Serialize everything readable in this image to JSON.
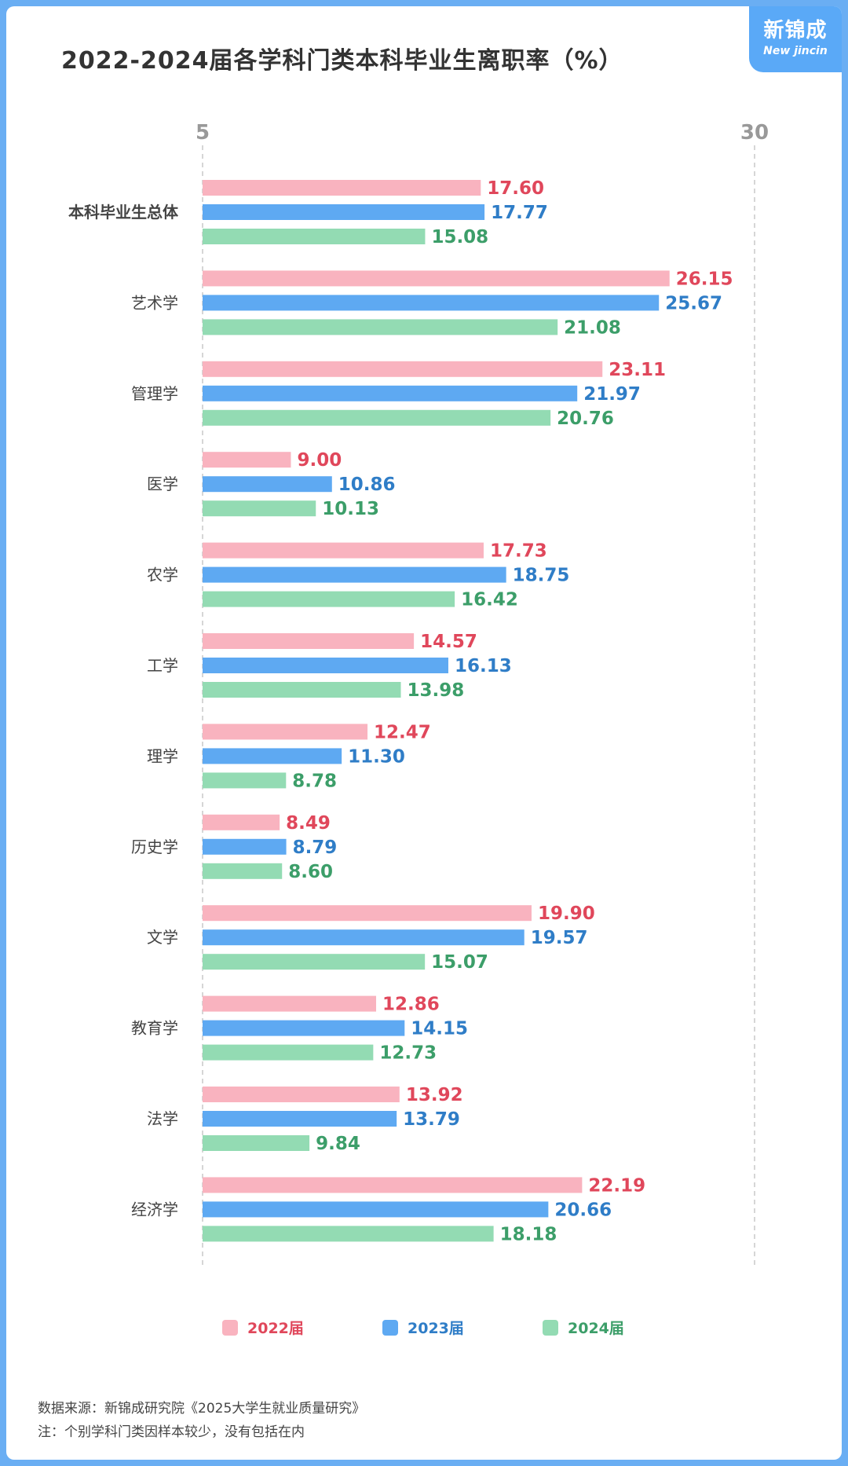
{
  "logo": {
    "cn": "新锦成",
    "en": "New jincin"
  },
  "footer": {
    "source": "数据来源：新锦成研究院《2025大学生就业质量研究》",
    "note": "注：个别学科门类因样本较少，没有包括在内"
  },
  "colors": {
    "2022": "#f9b3bf",
    "2022_label": "#e0475b",
    "2023": "#5ea9f2",
    "2023_label": "#2f7dc7",
    "2024": "#93dbb3",
    "2024_label": "#3c9e69",
    "axis": "#999999",
    "category": "#444444"
  },
  "chart_data": {
    "type": "bar",
    "orientation": "horizontal",
    "title": "2022-2024届各学科门类本科毕业生离职率（%）",
    "xlim": [
      5,
      30
    ],
    "ticks": [
      "5",
      "30"
    ],
    "grid": true,
    "legend_position": "bottom",
    "categories": [
      "本科毕业生总体",
      "艺术学",
      "管理学",
      "医学",
      "农学",
      "工学",
      "理学",
      "历史学",
      "文学",
      "教育学",
      "法学",
      "经济学"
    ],
    "series": [
      {
        "name": "2022届",
        "key": "2022",
        "values": [
          17.6,
          26.15,
          23.11,
          9.0,
          17.73,
          14.57,
          12.47,
          8.49,
          19.9,
          12.86,
          13.92,
          22.19
        ],
        "labels": [
          "17.60",
          "26.15",
          "23.11",
          "9.00",
          "17.73",
          "14.57",
          "12.47",
          "8.49",
          "19.90",
          "12.86",
          "13.92",
          "22.19"
        ]
      },
      {
        "name": "2023届",
        "key": "2023",
        "values": [
          17.77,
          25.67,
          21.97,
          10.86,
          18.75,
          16.13,
          11.3,
          8.79,
          19.57,
          14.15,
          13.79,
          20.66
        ],
        "labels": [
          "17.77",
          "25.67",
          "21.97",
          "10.86",
          "18.75",
          "16.13",
          "11.30",
          "8.79",
          "19.57",
          "14.15",
          "13.79",
          "20.66"
        ]
      },
      {
        "name": "2024届",
        "key": "2024",
        "values": [
          15.08,
          21.08,
          20.76,
          10.13,
          16.42,
          13.98,
          8.78,
          8.6,
          15.07,
          12.73,
          9.84,
          18.18
        ],
        "labels": [
          "15.08",
          "21.08",
          "20.76",
          "10.13",
          "16.42",
          "13.98",
          "8.78",
          "8.60",
          "15.07",
          "12.73",
          "9.84",
          "18.18"
        ]
      }
    ]
  }
}
